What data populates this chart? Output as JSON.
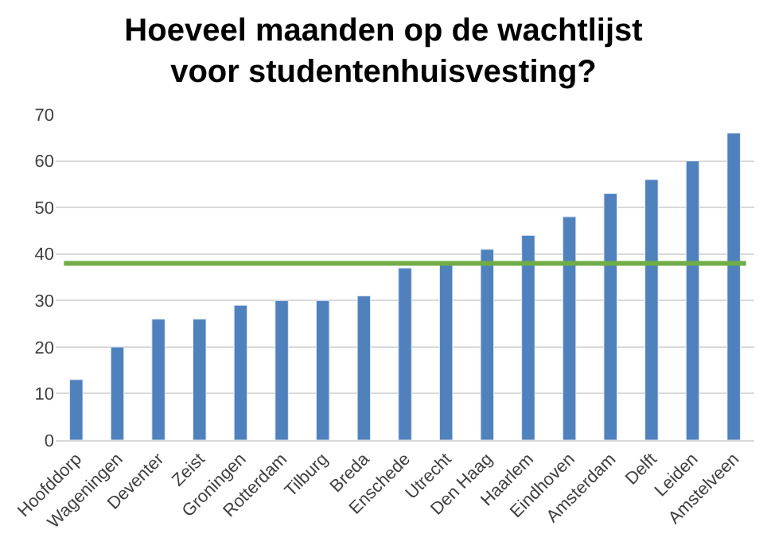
{
  "chart_data": {
    "type": "bar",
    "title": "Hoeveel maanden op de wachtlijst\nvoor studentenhuisvesting?",
    "categories": [
      "Hoofddorp",
      "Wageningen",
      "Deventer",
      "Zeist",
      "Groningen",
      "Rotterdam",
      "Tilburg",
      "Breda",
      "Enschede",
      "Utrecht",
      "Den Haag",
      "Haarlem",
      "Eindhoven",
      "Amsterdam",
      "Delft",
      "Leiden",
      "Amstelveen"
    ],
    "values": [
      13,
      20,
      26,
      26,
      29,
      30,
      30,
      31,
      37,
      38,
      41,
      44,
      48,
      53,
      56,
      60,
      66
    ],
    "color": "#4f81bd",
    "ylim": [
      0,
      70
    ],
    "yticks": [
      0,
      10,
      20,
      30,
      40,
      50,
      60,
      70
    ],
    "grid": "y",
    "ref_lines": [
      {
        "axis": "y",
        "value": 38,
        "color": "#70ad47",
        "line_style": "solid"
      }
    ]
  }
}
